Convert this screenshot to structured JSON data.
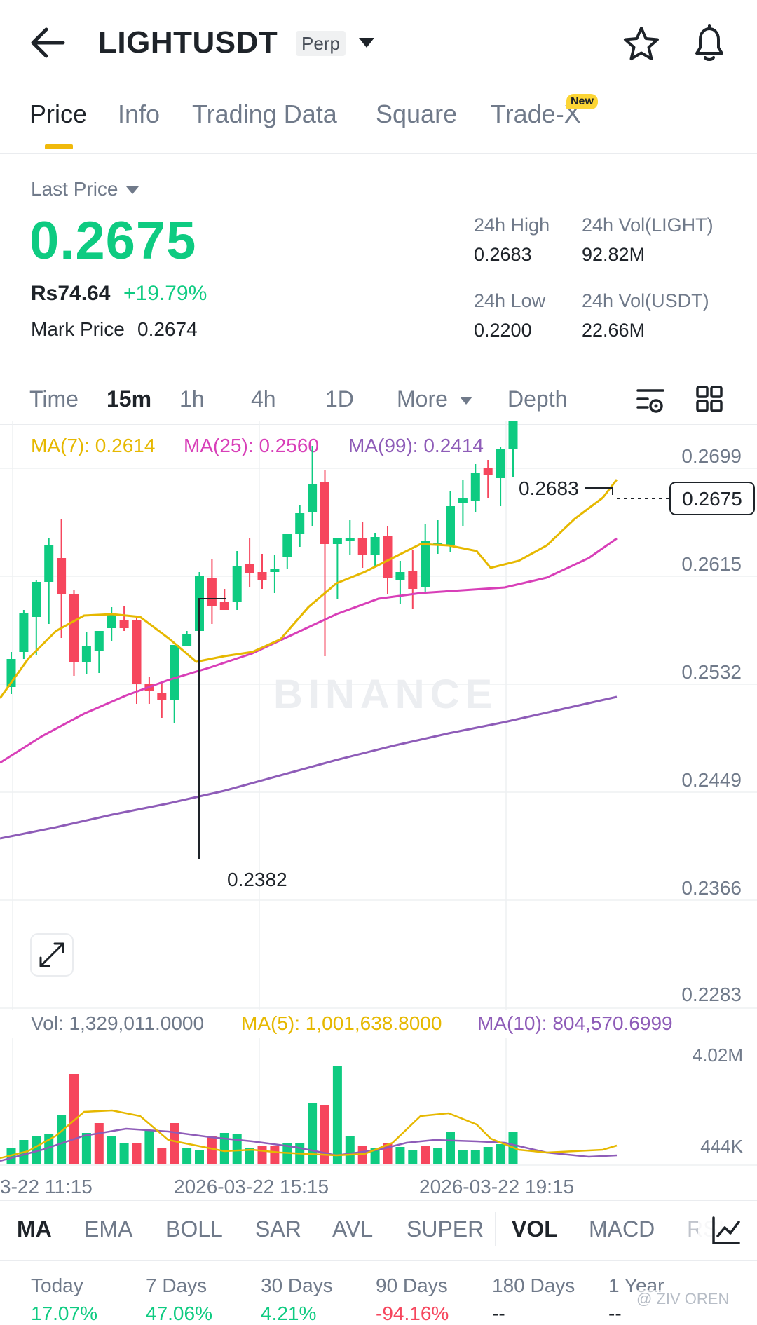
{
  "header": {
    "title": "LIGHTUSDT",
    "badge": "Perp"
  },
  "tabs": [
    {
      "label": "Price",
      "active": true
    },
    {
      "label": "Info"
    },
    {
      "label": "Trading Data"
    },
    {
      "label": "Square"
    },
    {
      "label": "Trade-X",
      "badge": "New"
    }
  ],
  "summary": {
    "last_price_label": "Last Price",
    "last_price": "0.2675",
    "local_price": "Rs74.64",
    "change_pct": "+19.79%",
    "mark_price_label": "Mark Price",
    "mark_price": "0.2674",
    "high_label": "24h High",
    "high": "0.2683",
    "vol_base_label": "24h Vol(LIGHT)",
    "vol_base": "92.82M",
    "low_label": "24h Low",
    "low": "0.2200",
    "vol_quote_label": "24h Vol(USDT)",
    "vol_quote": "22.66M"
  },
  "intervals": [
    {
      "label": "Time"
    },
    {
      "label": "15m",
      "active": true
    },
    {
      "label": "1h"
    },
    {
      "label": "4h"
    },
    {
      "label": "1D"
    },
    {
      "label": "More"
    },
    {
      "label": "Depth"
    }
  ],
  "ma_legend": {
    "ma7": "MA(7): 0.2614",
    "ma25": "MA(25): 0.2560",
    "ma99": "MA(99): 0.2414"
  },
  "chart": {
    "price_ticks": [
      "0.2699",
      "0.2615",
      "0.2532",
      "0.2449",
      "0.2366",
      "0.2283"
    ],
    "current_price_tag": "0.2675",
    "high_marker": "0.2683",
    "low_marker": "0.2382",
    "watermark": "BINANCE",
    "time_labels": [
      "3-22 11:15",
      "2026-03-22 15:15",
      "2026-03-22 19:15"
    ],
    "colors": {
      "up": "#0ecb81",
      "down": "#f6465d",
      "ma7": "#e6b800",
      "ma25": "#d83fb8",
      "ma99": "#8e5cb8"
    }
  },
  "vol_legend": {
    "vol": "Vol: 1,329,011.0000",
    "ma5": "MA(5): 1,001,638.8000",
    "ma10": "MA(10): 804,570.6999"
  },
  "vol_ticks": [
    "4.02M",
    "444K"
  ],
  "indicators": [
    {
      "label": "MA",
      "active": true
    },
    {
      "label": "EMA"
    },
    {
      "label": "BOLL"
    },
    {
      "label": "SAR"
    },
    {
      "label": "AVL"
    },
    {
      "label": "SUPER"
    },
    {
      "label": "VOL",
      "active": true
    },
    {
      "label": "MACD"
    },
    {
      "label": "RSI"
    }
  ],
  "performance": [
    {
      "label": "Today",
      "value": "17.07%",
      "trend": "up"
    },
    {
      "label": "7 Days",
      "value": "47.06%",
      "trend": "up"
    },
    {
      "label": "30 Days",
      "value": "4.21%",
      "trend": "up"
    },
    {
      "label": "90 Days",
      "value": "-94.16%",
      "trend": "down"
    },
    {
      "label": "180 Days",
      "value": "--",
      "trend": "none"
    },
    {
      "label": "1 Year",
      "value": "--",
      "trend": "none"
    }
  ],
  "watermark_user": "@ ZIV OREN"
}
